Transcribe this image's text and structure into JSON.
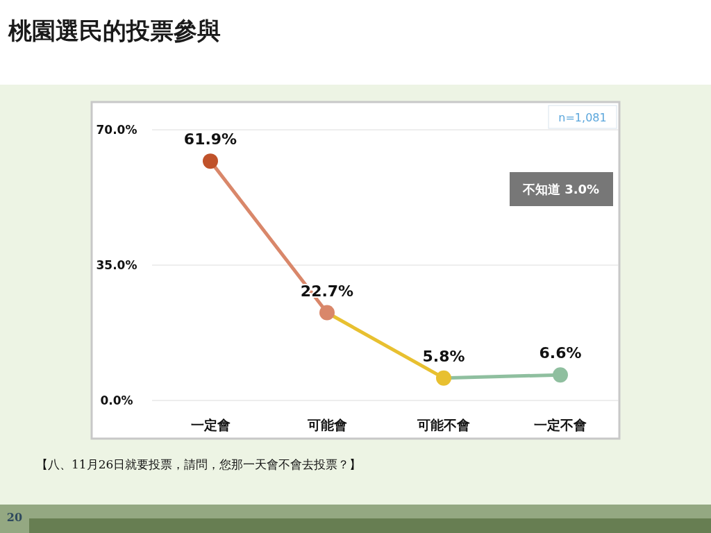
{
  "chart_data": {
    "type": "line",
    "title": "桃園選民的投票參與",
    "categories": [
      "一定會",
      "可能會",
      "可能不會",
      "一定不會"
    ],
    "series": [
      {
        "values": [
          61.9,
          22.7,
          5.8,
          6.6
        ],
        "colors": [
          "#c0522a",
          "#d9876a",
          "#e8c030",
          "#8fbf9f"
        ],
        "value_labels": [
          "61.9%",
          "22.7%",
          "5.8%",
          "6.6%"
        ]
      }
    ],
    "ylim": [
      0,
      70
    ],
    "yticks": [
      {
        "value": 0,
        "label": "0.0%"
      },
      {
        "value": 35,
        "label": "35.0%"
      },
      {
        "value": 70,
        "label": "70.0%"
      }
    ],
    "grid": "y",
    "marker": "circle",
    "annotations": [
      "n=1,081",
      "不知道 3.0%",
      "【八、11月26日就要投票，請問，您那一天會不會去投票？】",
      "20"
    ]
  }
}
